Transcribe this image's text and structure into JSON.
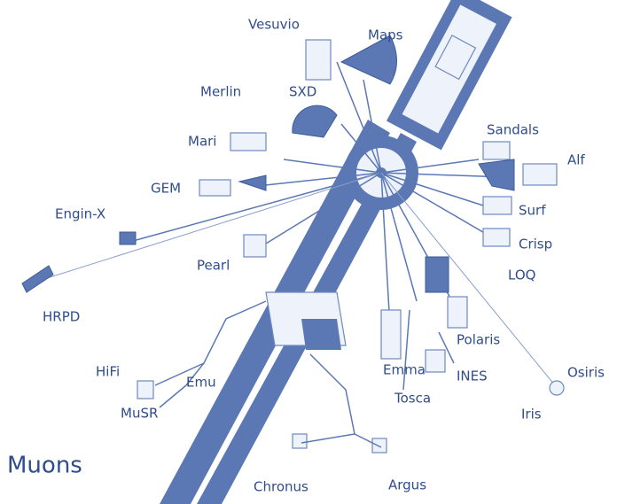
{
  "title": "Muons",
  "instruments": [
    {
      "label": "Vesuvio"
    },
    {
      "label": "Maps"
    },
    {
      "label": "Merlin"
    },
    {
      "label": "SXD"
    },
    {
      "label": "Sandals"
    },
    {
      "label": "Alf"
    },
    {
      "label": "Mari"
    },
    {
      "label": "GEM"
    },
    {
      "label": "Engin-X"
    },
    {
      "label": "Surf"
    },
    {
      "label": "Crisp"
    },
    {
      "label": "Pearl"
    },
    {
      "label": "LOQ"
    },
    {
      "label": "HRPD"
    },
    {
      "label": "Polaris"
    },
    {
      "label": "HiFi"
    },
    {
      "label": "Emu"
    },
    {
      "label": "Emma"
    },
    {
      "label": "INES"
    },
    {
      "label": "Osiris"
    },
    {
      "label": "Tosca"
    },
    {
      "label": "Iris"
    },
    {
      "label": "MuSR"
    },
    {
      "label": "Chronus"
    },
    {
      "label": "Argus"
    }
  ]
}
